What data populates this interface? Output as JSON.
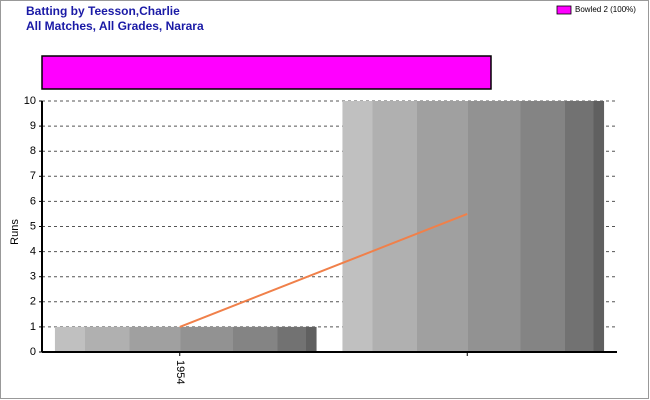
{
  "chart_data": {
    "type": "bar",
    "title": "Batting by Teesson,Charlie",
    "subtitle": "All Matches, All Grades, Narara",
    "y_label": "Runs",
    "categories": [
      "1954",
      null
    ],
    "values": [
      1,
      10
    ],
    "trend": {
      "color": "#f0804a",
      "values": [
        1,
        5.5
      ]
    },
    "ylim": [
      0,
      10
    ],
    "yticks": [
      0,
      1,
      2,
      3,
      4,
      5,
      6,
      7,
      8,
      9,
      10
    ],
    "grid": true,
    "dismissals": {
      "series": [
        {
          "name": "Bowled 2 (100%)",
          "color": "#ff00ff",
          "values": [
            2
          ]
        }
      ]
    }
  }
}
